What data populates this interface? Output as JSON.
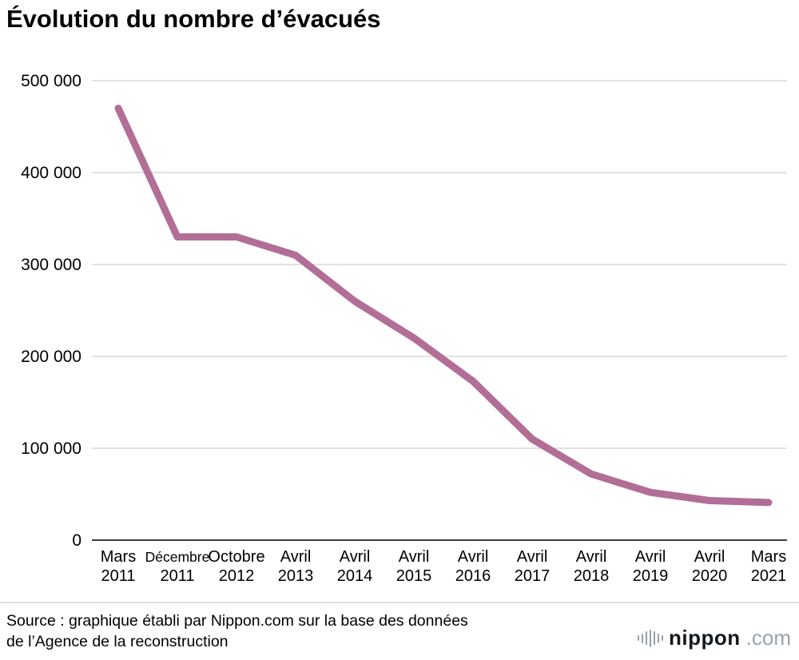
{
  "title": "Évolution du nombre d’évacués",
  "chart_data": {
    "type": "line",
    "title": "Évolution du nombre d’évacués",
    "categories": [
      [
        "Mars",
        "2011"
      ],
      [
        "Décembre",
        "2011"
      ],
      [
        "Octobre",
        "2012"
      ],
      [
        "Avril",
        "2013"
      ],
      [
        "Avril",
        "2014"
      ],
      [
        "Avril",
        "2015"
      ],
      [
        "Avril",
        "2016"
      ],
      [
        "Avril",
        "2017"
      ],
      [
        "Avril",
        "2018"
      ],
      [
        "Avril",
        "2019"
      ],
      [
        "Avril",
        "2020"
      ],
      [
        "Mars",
        "2021"
      ]
    ],
    "values": [
      470000,
      330000,
      330000,
      310000,
      260000,
      220000,
      173000,
      110000,
      72000,
      52000,
      43000,
      41000
    ],
    "ylim": [
      0,
      500000
    ],
    "yticks": [
      0,
      100000,
      200000,
      300000,
      400000,
      500000
    ],
    "ytick_labels": [
      "0",
      "100 000",
      "200 000",
      "300 000",
      "400 000",
      "500 000"
    ],
    "xlabel": "",
    "ylabel": "",
    "grid": true,
    "legend": "none",
    "line_color": "#b26e96",
    "gridline_color": "#d8d8d8",
    "axis_color": "#3c3c3c"
  },
  "footer": {
    "source_line1": "Source : graphique établi par Nippon.com sur la base des données",
    "source_line2": "de l’Agence de la reconstruction",
    "logo": {
      "icon": "soundwave-bars-icon",
      "name": "nippon",
      "suffix": ".com"
    }
  }
}
